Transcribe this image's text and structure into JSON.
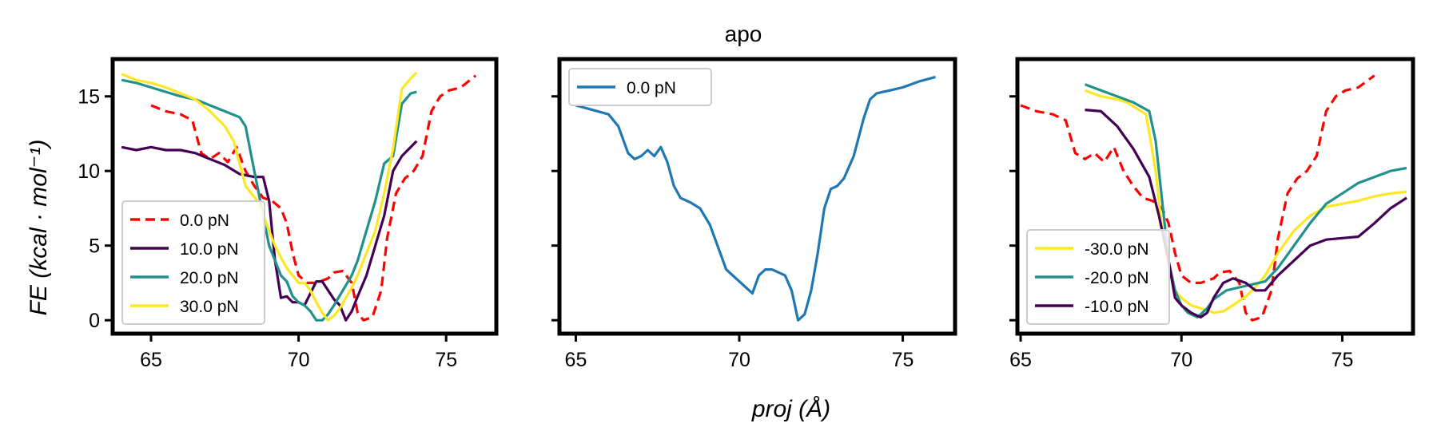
{
  "figure": {
    "title": "apo",
    "xlabel": "proj (Å)",
    "ylabel": "FE (kcal · mol⁻¹)"
  },
  "chart_data": [
    {
      "type": "line",
      "xlim": [
        63.7,
        76.7
      ],
      "ylim": [
        -0.9,
        17.5
      ],
      "x_ticks": [
        65,
        70,
        75
      ],
      "y_ticks": [
        0,
        5,
        10,
        15
      ],
      "show_y_tick_labels": true,
      "grid": false,
      "legend_position": "lower-left",
      "series": [
        {
          "name": "0.0 pN",
          "color": "#ff0000",
          "dash": true,
          "x": [
            65.0,
            65.5,
            66.0,
            66.4,
            66.7,
            67.0,
            67.3,
            67.6,
            67.9,
            68.2,
            68.5,
            68.8,
            69.1,
            69.4,
            69.6,
            69.8,
            70.0,
            70.3,
            70.6,
            71.0,
            71.2,
            71.5,
            71.8,
            72.0,
            72.2,
            72.5,
            72.8,
            73.0,
            73.3,
            73.6,
            73.9,
            74.2,
            74.5,
            74.8,
            75.1,
            75.5,
            76.0
          ],
          "y": [
            14.4,
            14.0,
            13.8,
            13.4,
            11.2,
            10.8,
            11.2,
            10.6,
            11.6,
            10.0,
            9.0,
            8.2,
            8.0,
            7.5,
            6.5,
            4.5,
            3.0,
            2.5,
            2.5,
            2.8,
            3.2,
            3.3,
            2.5,
            0.5,
            0.0,
            0.2,
            2.0,
            5.5,
            8.5,
            9.5,
            10.0,
            11.0,
            14.0,
            15.0,
            15.4,
            15.6,
            16.4
          ]
        },
        {
          "name": "10.0 pN",
          "color": "#440154",
          "dash": false,
          "x": [
            64.0,
            64.5,
            65.0,
            65.5,
            66.0,
            66.5,
            67.0,
            67.5,
            68.0,
            68.5,
            68.8,
            69.0,
            69.2,
            69.4,
            69.6,
            69.8,
            70.0,
            70.2,
            70.4,
            70.6,
            70.8,
            71.0,
            71.2,
            71.4,
            71.6,
            71.8,
            72.0,
            72.3,
            72.6,
            72.9,
            73.2,
            73.5,
            73.8,
            74.0
          ],
          "y": [
            11.6,
            11.4,
            11.6,
            11.4,
            11.4,
            11.2,
            10.8,
            10.4,
            9.8,
            9.6,
            9.6,
            8.0,
            4.0,
            1.5,
            1.6,
            1.2,
            1.2,
            1.0,
            1.8,
            2.6,
            2.6,
            2.0,
            1.4,
            1.0,
            0.0,
            0.6,
            1.6,
            3.0,
            5.0,
            7.0,
            10.0,
            11.0,
            11.6,
            12.0
          ]
        },
        {
          "name": "20.0 pN",
          "color": "#21918c",
          "dash": false,
          "x": [
            64.0,
            64.5,
            65.0,
            65.5,
            66.0,
            66.5,
            67.0,
            67.5,
            68.0,
            68.2,
            68.4,
            68.6,
            68.8,
            69.0,
            69.2,
            69.4,
            69.6,
            69.8,
            70.0,
            70.2,
            70.4,
            70.6,
            70.8,
            71.0,
            71.2,
            71.5,
            71.8,
            72.0,
            72.3,
            72.6,
            72.9,
            73.2,
            73.5,
            73.8,
            74.0
          ],
          "y": [
            16.1,
            15.9,
            15.6,
            15.3,
            15.0,
            14.8,
            14.4,
            14.0,
            13.6,
            13.0,
            11.0,
            9.0,
            7.0,
            5.0,
            4.0,
            3.0,
            2.6,
            1.6,
            1.2,
            1.0,
            0.6,
            0.0,
            0.0,
            0.4,
            1.0,
            2.0,
            3.0,
            4.0,
            6.0,
            8.0,
            10.5,
            11.0,
            14.5,
            15.2,
            15.3
          ]
        },
        {
          "name": "30.0 pN",
          "color": "#fde725",
          "dash": false,
          "x": [
            64.0,
            64.5,
            65.0,
            65.5,
            66.0,
            66.5,
            67.0,
            67.5,
            67.8,
            68.0,
            68.2,
            68.4,
            68.6,
            68.8,
            69.0,
            69.2,
            69.4,
            69.6,
            69.8,
            70.0,
            70.2,
            70.4,
            70.6,
            70.8,
            71.0,
            71.2,
            71.4,
            71.6,
            71.8,
            72.0,
            72.3,
            72.6,
            72.9,
            73.2,
            73.5,
            73.8,
            74.0
          ],
          "y": [
            16.5,
            16.1,
            15.9,
            15.6,
            15.2,
            14.8,
            14.0,
            13.0,
            12.0,
            10.5,
            9.0,
            8.5,
            8.0,
            7.0,
            6.0,
            5.0,
            4.2,
            3.5,
            3.0,
            2.5,
            2.5,
            2.0,
            1.2,
            0.5,
            0.0,
            0.3,
            0.8,
            1.5,
            2.2,
            3.0,
            4.5,
            6.0,
            8.5,
            11.5,
            15.5,
            16.2,
            16.6
          ]
        }
      ]
    },
    {
      "type": "line",
      "xlim": [
        64.5,
        76.6
      ],
      "ylim": [
        -0.9,
        17.5
      ],
      "x_ticks": [
        65,
        70,
        75
      ],
      "y_ticks": [
        0,
        5,
        10,
        15
      ],
      "show_y_tick_labels": false,
      "grid": false,
      "legend_position": "top-left",
      "series": [
        {
          "name": "0.0 pN",
          "color": "#1f77b4",
          "dash": false,
          "x": [
            65.0,
            65.5,
            66.0,
            66.3,
            66.6,
            66.8,
            67.0,
            67.2,
            67.4,
            67.6,
            67.8,
            68.0,
            68.2,
            68.5,
            68.8,
            69.1,
            69.4,
            69.6,
            69.8,
            70.0,
            70.2,
            70.4,
            70.6,
            70.8,
            71.0,
            71.2,
            71.4,
            71.6,
            71.8,
            72.0,
            72.2,
            72.4,
            72.6,
            72.8,
            73.0,
            73.2,
            73.5,
            73.8,
            74.0,
            74.2,
            74.4,
            74.6,
            75.0,
            75.5,
            76.0
          ],
          "y": [
            14.4,
            14.1,
            13.8,
            13.0,
            11.2,
            10.8,
            11.0,
            11.4,
            11.0,
            11.6,
            10.6,
            9.0,
            8.2,
            7.9,
            7.5,
            6.4,
            4.6,
            3.4,
            3.0,
            2.6,
            2.2,
            1.8,
            3.0,
            3.4,
            3.4,
            3.2,
            3.0,
            2.0,
            0.0,
            0.4,
            2.0,
            4.5,
            7.5,
            8.8,
            9.0,
            9.5,
            11.0,
            13.5,
            14.8,
            15.2,
            15.3,
            15.4,
            15.6,
            16.0,
            16.3
          ]
        }
      ]
    },
    {
      "type": "line",
      "xlim": [
        64.9,
        77.2
      ],
      "ylim": [
        -0.9,
        17.5
      ],
      "x_ticks": [
        65,
        70,
        75
      ],
      "y_ticks": [
        0,
        5,
        10,
        15
      ],
      "show_y_tick_labels": false,
      "grid": false,
      "legend_position": "lower-left",
      "series": [
        {
          "name": "0.0 pN",
          "color": "#ff0000",
          "dash": true,
          "in_legend": false,
          "x": [
            65.0,
            65.5,
            66.0,
            66.4,
            66.7,
            67.0,
            67.3,
            67.6,
            67.9,
            68.2,
            68.5,
            68.8,
            69.1,
            69.4,
            69.6,
            69.8,
            70.0,
            70.3,
            70.6,
            71.0,
            71.2,
            71.5,
            71.8,
            72.0,
            72.2,
            72.5,
            72.8,
            73.0,
            73.3,
            73.6,
            73.9,
            74.2,
            74.5,
            74.8,
            75.1,
            75.5,
            76.0
          ],
          "y": [
            14.4,
            14.0,
            13.8,
            13.4,
            11.2,
            10.8,
            11.2,
            10.6,
            11.6,
            10.0,
            9.0,
            8.2,
            8.0,
            7.5,
            6.5,
            4.5,
            3.0,
            2.5,
            2.5,
            2.8,
            3.2,
            3.3,
            2.5,
            0.5,
            0.0,
            0.2,
            2.0,
            5.5,
            8.5,
            9.5,
            10.0,
            11.0,
            14.0,
            15.0,
            15.4,
            15.6,
            16.4
          ]
        },
        {
          "name": "-30.0 pN",
          "color": "#fde725",
          "dash": false,
          "x": [
            67.0,
            67.5,
            68.0,
            68.3,
            68.6,
            68.9,
            69.2,
            69.4,
            69.6,
            69.8,
            70.0,
            70.3,
            70.6,
            71.0,
            71.3,
            71.6,
            72.0,
            72.3,
            72.6,
            73.0,
            73.5,
            74.0,
            74.5,
            75.0,
            75.5,
            76.0,
            76.5,
            77.0
          ],
          "y": [
            15.4,
            15.0,
            14.8,
            14.6,
            14.2,
            13.8,
            10.0,
            6.0,
            3.5,
            2.0,
            1.5,
            1.0,
            0.8,
            0.5,
            0.6,
            1.0,
            1.6,
            2.2,
            3.0,
            4.5,
            6.0,
            7.0,
            7.6,
            7.8,
            8.0,
            8.3,
            8.5,
            8.6
          ]
        },
        {
          "name": "-20.0 pN",
          "color": "#21918c",
          "dash": false,
          "x": [
            67.0,
            67.5,
            68.0,
            68.5,
            69.0,
            69.2,
            69.4,
            69.6,
            69.8,
            70.0,
            70.2,
            70.5,
            70.8,
            71.0,
            71.4,
            71.8,
            72.2,
            72.6,
            73.0,
            73.5,
            74.0,
            74.5,
            75.0,
            75.5,
            76.0,
            76.5,
            77.0
          ],
          "y": [
            15.8,
            15.4,
            15.0,
            14.6,
            14.0,
            12.0,
            8.0,
            4.0,
            2.0,
            1.0,
            0.5,
            0.2,
            0.8,
            1.4,
            2.0,
            2.2,
            2.4,
            2.6,
            3.5,
            5.0,
            6.5,
            7.8,
            8.5,
            9.2,
            9.6,
            10.0,
            10.2
          ]
        },
        {
          "name": "-10.0 pN",
          "color": "#440154",
          "dash": false,
          "x": [
            67.0,
            67.5,
            68.0,
            68.5,
            69.0,
            69.3,
            69.6,
            69.8,
            70.0,
            70.3,
            70.6,
            70.8,
            71.0,
            71.3,
            71.6,
            72.0,
            72.3,
            72.6,
            73.0,
            73.5,
            74.0,
            74.5,
            75.0,
            75.5,
            76.0,
            76.5,
            77.0
          ],
          "y": [
            14.1,
            14.0,
            13.0,
            11.5,
            9.6,
            7.0,
            4.0,
            1.5,
            1.0,
            0.5,
            0.2,
            0.5,
            1.5,
            2.5,
            2.8,
            2.5,
            2.0,
            2.0,
            3.0,
            4.0,
            5.0,
            5.4,
            5.5,
            5.6,
            6.5,
            7.5,
            8.2
          ]
        }
      ]
    }
  ]
}
